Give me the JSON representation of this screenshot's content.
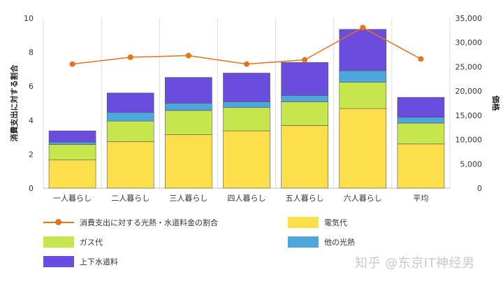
{
  "chart_data": {
    "type": "bar",
    "categories": [
      "一人暮らし",
      "二人暮らし",
      "三人暮らし",
      "四人暮らし",
      "五人暮らし",
      "六人暮らし",
      "平均"
    ],
    "series": [
      {
        "name": "電気代",
        "color": "#fcdf4b",
        "values": [
          5800,
          9600,
          11000,
          11800,
          12900,
          16400,
          9100
        ]
      },
      {
        "name": "ガス代",
        "color": "#c7e64e",
        "values": [
          3200,
          4200,
          5000,
          4800,
          4900,
          5400,
          4300
        ]
      },
      {
        "name": "他の光熱",
        "color": "#4fa6dc",
        "values": [
          500,
          1800,
          1500,
          1200,
          1300,
          2400,
          1200
        ]
      },
      {
        "name": "上下水道料",
        "color": "#6a4ddc",
        "values": [
          2300,
          4000,
          5300,
          5900,
          6800,
          8500,
          4100
        ]
      }
    ],
    "line": {
      "name": "消費支出に対する光熱・水道料金の割合",
      "color": "#e8731e",
      "values": [
        7.3,
        7.7,
        7.8,
        7.3,
        7.55,
        9.45,
        7.6
      ]
    },
    "y_left": {
      "label": "消費支出に対する割合",
      "min": 0,
      "max": 10,
      "ticks": [
        "0",
        "2",
        "4",
        "6",
        "8",
        "10"
      ]
    },
    "y_right": {
      "label": "価格",
      "min": 0,
      "max": 35000,
      "ticks": [
        "0",
        "5,000",
        "10,000",
        "15,000",
        "20,000",
        "25,000",
        "30,000",
        "35,000"
      ]
    },
    "grid": "vertical category separators",
    "legend_position": "bottom"
  },
  "legend": {
    "line_label": "消費支出に対する光熱・水道料金の割合",
    "electric_label": "電気代",
    "gas_label": "ガス代",
    "other_label": "他の光熱",
    "water_label": "上下水道料"
  },
  "watermark": "知乎 @东京IT神经男"
}
